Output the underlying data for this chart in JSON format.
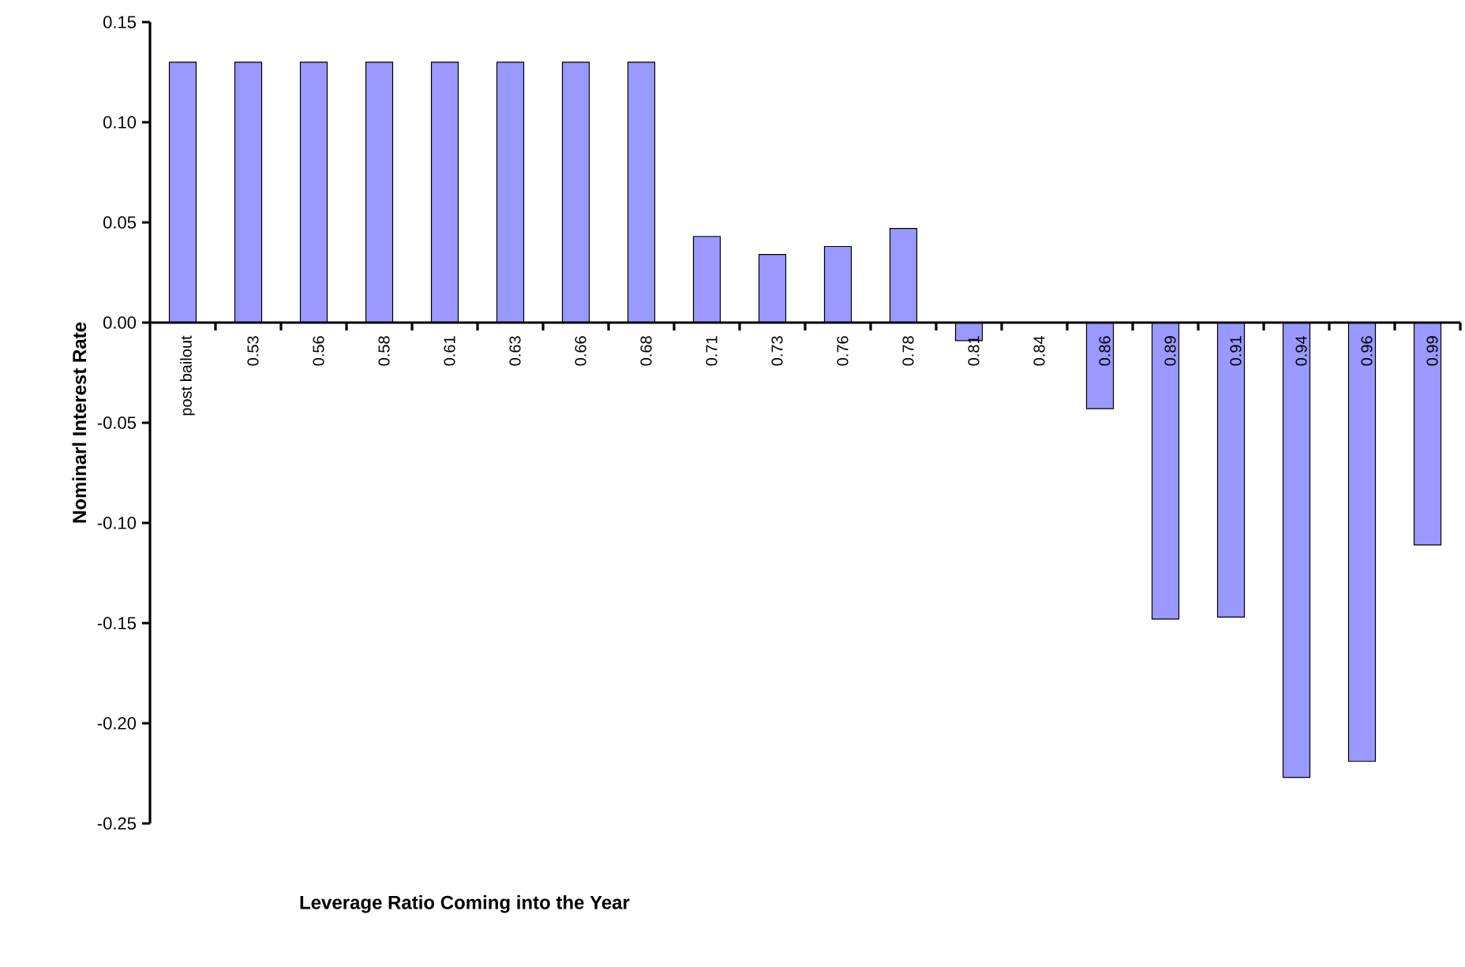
{
  "chart_data": {
    "type": "bar",
    "xlabel": "Leverage Ratio Coming into the Year",
    "ylabel": "Nominarl Interest Rate",
    "categories": [
      "post bailout",
      "0.53",
      "0.56",
      "0.58",
      "0.61",
      "0.63",
      "0.66",
      "0.68",
      "0.71",
      "0.73",
      "0.76",
      "0.78",
      "0.81",
      "0.84",
      "0.86",
      "0.89",
      "0.91",
      "0.94",
      "0.96",
      "0.99"
    ],
    "values": [
      0.13,
      0.13,
      0.13,
      0.13,
      0.13,
      0.13,
      0.13,
      0.13,
      0.043,
      0.034,
      0.038,
      0.047,
      -0.009,
      null,
      -0.043,
      -0.148,
      -0.147,
      -0.227,
      -0.219,
      -0.111
    ],
    "color": "#9999ff",
    "ylim": [
      -0.25,
      0.15
    ],
    "yticks": [
      {
        "value": -0.25,
        "label": "-0.25"
      },
      {
        "value": -0.2,
        "label": "-0.20"
      },
      {
        "value": -0.15,
        "label": "-0.15"
      },
      {
        "value": -0.1,
        "label": "-0.10"
      },
      {
        "value": -0.05,
        "label": "-0.05"
      },
      {
        "value": 0,
        "label": "0.00"
      },
      {
        "value": 0.05,
        "label": "0.05"
      },
      {
        "value": 0.1,
        "label": "0.10"
      },
      {
        "value": 0.15,
        "label": "0.15"
      }
    ]
  }
}
